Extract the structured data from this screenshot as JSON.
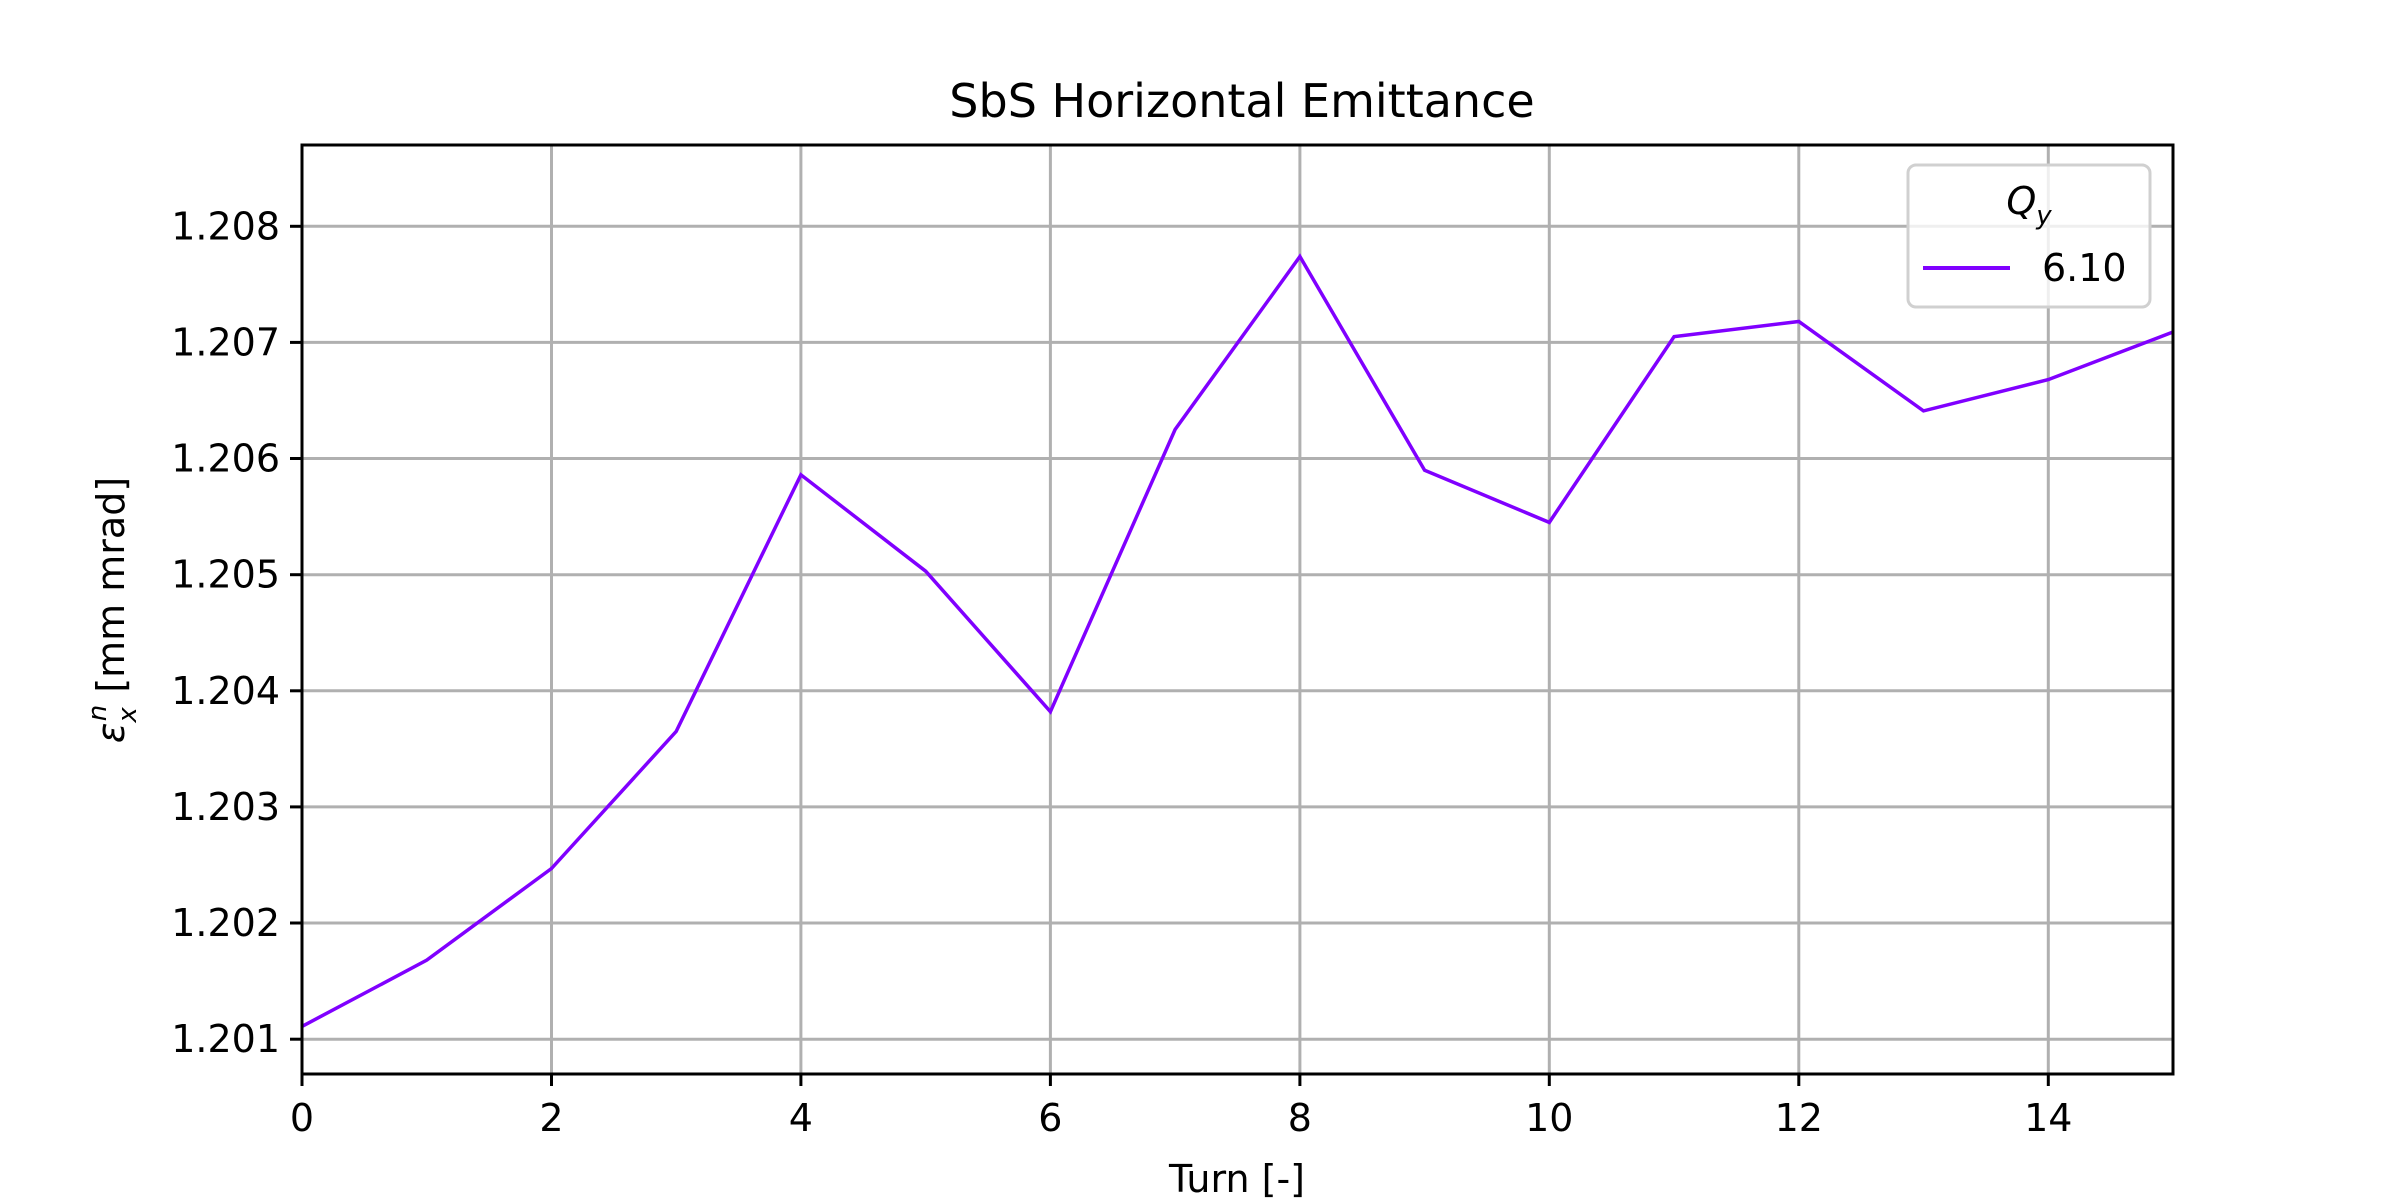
{
  "chart_data": {
    "type": "line",
    "title": "SbS Horizontal Emittance",
    "xlabel": "Turn [-]",
    "ylabel_symbol": "ε",
    "ylabel_sub": "x",
    "ylabel_sup": "n",
    "ylabel_unit": " [mm mrad]",
    "xlim": [
      0,
      15
    ],
    "ylim": [
      1.2007,
      1.2087
    ],
    "xticks": [
      0,
      2,
      4,
      6,
      8,
      10,
      12,
      14
    ],
    "xtick_labels": [
      "0",
      "2",
      "4",
      "6",
      "8",
      "10",
      "12",
      "14"
    ],
    "yticks": [
      1.201,
      1.202,
      1.203,
      1.204,
      1.205,
      1.206,
      1.207,
      1.208
    ],
    "ytick_labels": [
      "1.201",
      "1.202",
      "1.203",
      "1.204",
      "1.205",
      "1.206",
      "1.207",
      "1.208"
    ],
    "grid": true,
    "legend": {
      "placement": "top-right",
      "title_symbol": "Q",
      "title_sub": "y"
    },
    "series": [
      {
        "name": "6.10",
        "color": "#8000ff",
        "x": [
          0,
          1,
          2,
          3,
          4,
          5,
          6,
          7,
          8,
          9,
          10,
          11,
          12,
          13,
          14,
          15
        ],
        "y": [
          1.20111,
          1.20168,
          1.20247,
          1.20365,
          1.20586,
          1.20503,
          1.20382,
          1.20625,
          1.20774,
          1.2059,
          1.20545,
          1.20705,
          1.20718,
          1.20641,
          1.20668,
          1.20709
        ]
      }
    ]
  }
}
